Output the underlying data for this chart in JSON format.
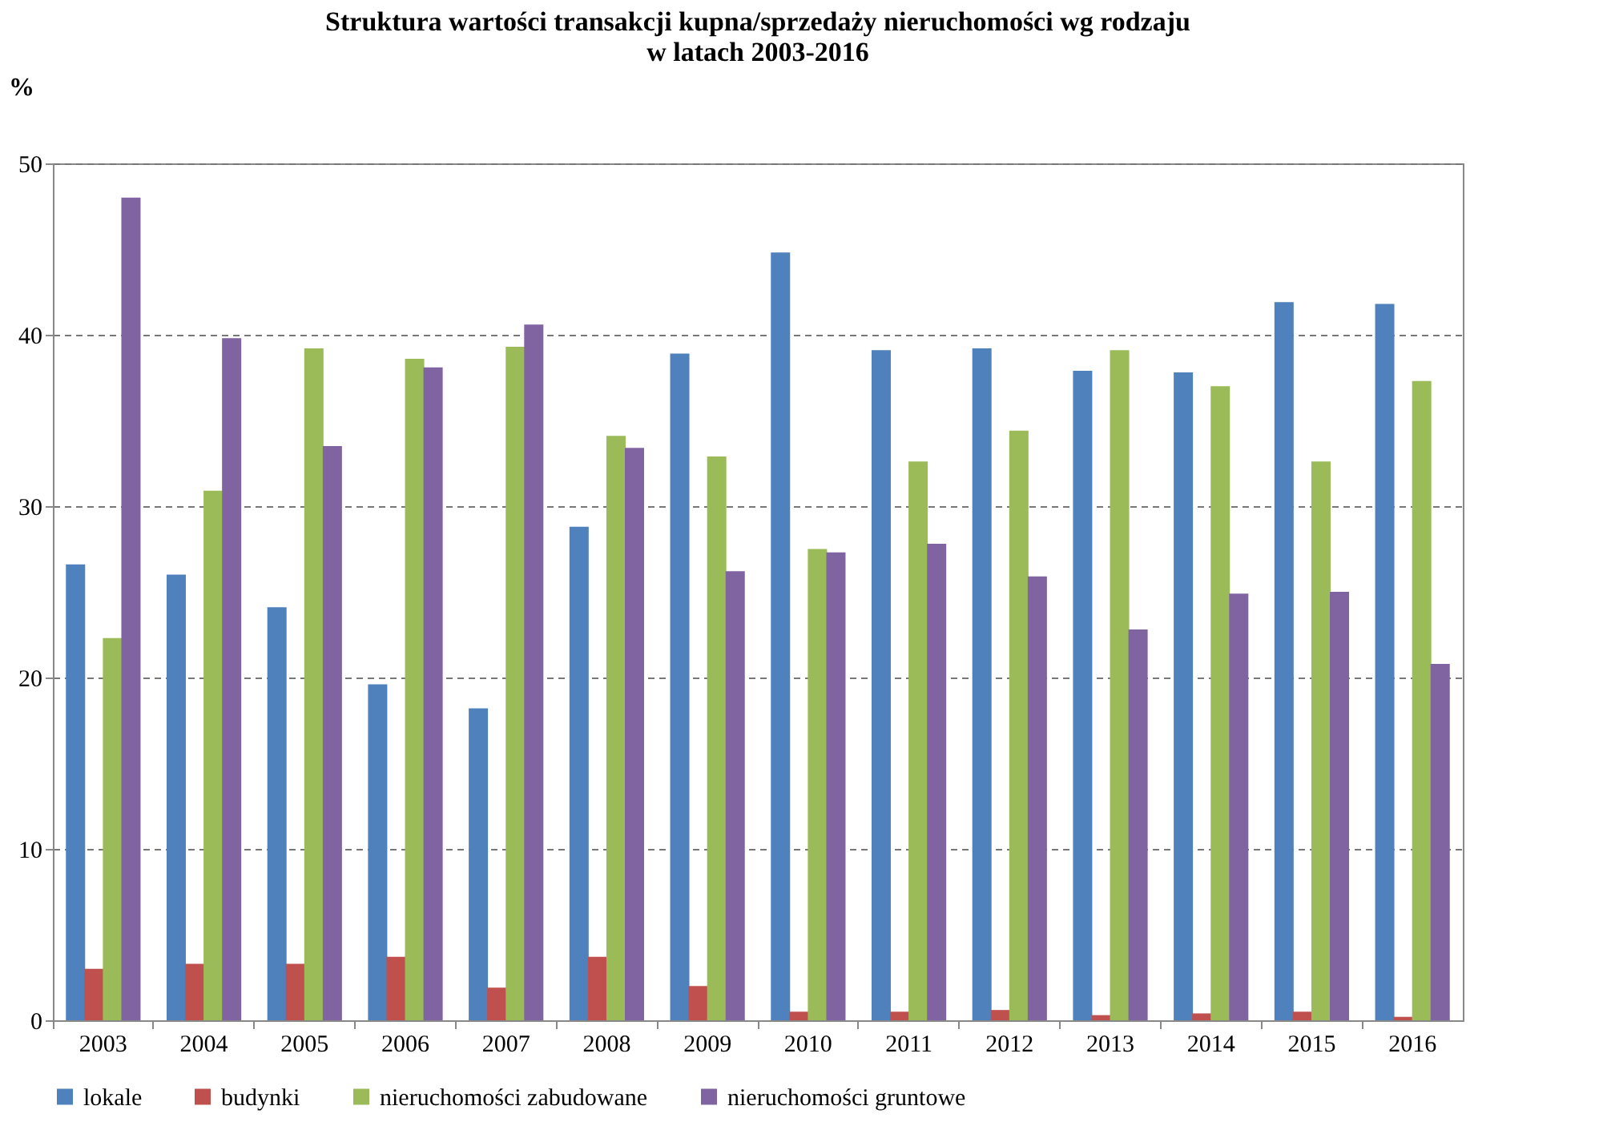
{
  "chart_data": {
    "type": "bar",
    "title": "Struktura wartości transakcji kupna/sprzedaży nieruchomości wg rodzaju\nw latach 2003-2016",
    "ylabel": "%",
    "categories": [
      "2003",
      "2004",
      "2005",
      "2006",
      "2007",
      "2008",
      "2009",
      "2010",
      "2011",
      "2012",
      "2013",
      "2014",
      "2015",
      "2016"
    ],
    "series": [
      {
        "name": "lokale",
        "color": "#4f81bd",
        "values": [
          26.6,
          26.0,
          24.1,
          19.6,
          18.2,
          28.8,
          38.9,
          44.8,
          39.1,
          39.2,
          37.9,
          37.8,
          41.9,
          41.8
        ]
      },
      {
        "name": "budynki",
        "color": "#c0504d",
        "values": [
          3.0,
          3.3,
          3.3,
          3.7,
          1.9,
          3.7,
          2.0,
          0.5,
          0.5,
          0.6,
          0.3,
          0.4,
          0.5,
          0.2
        ]
      },
      {
        "name": "nieruchomości zabudowane",
        "color": "#9bbb59",
        "values": [
          22.3,
          30.9,
          39.2,
          38.6,
          39.3,
          34.1,
          32.9,
          27.5,
          32.6,
          34.4,
          39.1,
          37.0,
          32.6,
          37.3
        ]
      },
      {
        "name": "nieruchomości gruntowe",
        "color": "#8064a2",
        "values": [
          48.0,
          39.8,
          33.5,
          38.1,
          40.6,
          33.4,
          26.2,
          27.3,
          27.8,
          25.9,
          22.8,
          24.9,
          25.0,
          20.8
        ]
      }
    ],
    "ylim": [
      0,
      50
    ],
    "yticks": [
      0,
      10,
      20,
      30,
      40,
      50
    ],
    "grid": "y",
    "legend": "bottom"
  }
}
